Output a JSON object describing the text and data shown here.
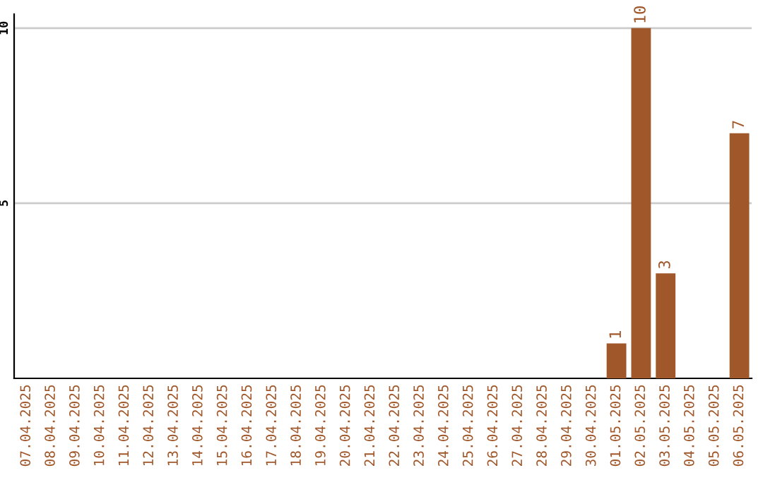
{
  "chart_data": {
    "type": "bar",
    "categories": [
      "07.04.2025",
      "08.04.2025",
      "09.04.2025",
      "10.04.2025",
      "11.04.2025",
      "12.04.2025",
      "13.04.2025",
      "14.04.2025",
      "15.04.2025",
      "16.04.2025",
      "17.04.2025",
      "18.04.2025",
      "19.04.2025",
      "20.04.2025",
      "21.04.2025",
      "22.04.2025",
      "23.04.2025",
      "24.04.2025",
      "25.04.2025",
      "26.04.2025",
      "27.04.2025",
      "28.04.2025",
      "29.04.2025",
      "30.04.2025",
      "01.05.2025",
      "02.05.2025",
      "03.05.2025",
      "04.05.2025",
      "05.05.2025",
      "06.05.2025"
    ],
    "values": [
      0,
      0,
      0,
      0,
      0,
      0,
      0,
      0,
      0,
      0,
      0,
      0,
      0,
      0,
      0,
      0,
      0,
      0,
      0,
      0,
      0,
      0,
      0,
      0,
      1,
      10,
      3,
      0,
      0,
      7
    ],
    "value_labels": [
      null,
      null,
      null,
      null,
      null,
      null,
      null,
      null,
      null,
      null,
      null,
      null,
      null,
      null,
      null,
      null,
      null,
      null,
      null,
      null,
      null,
      null,
      null,
      null,
      "1",
      "10",
      "3",
      null,
      null,
      "7"
    ],
    "color": "#a0572a",
    "ylim": [
      0,
      10.4
    ],
    "yticks": [
      5,
      10
    ],
    "grid": "y",
    "legend": false
  }
}
